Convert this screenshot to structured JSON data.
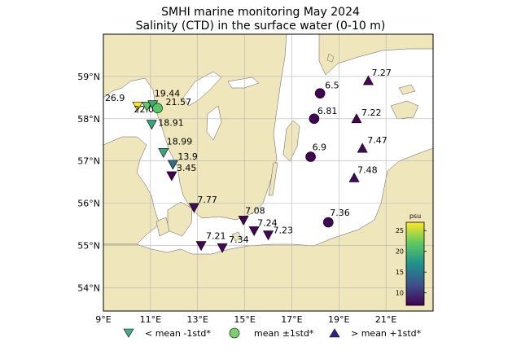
{
  "title": "SMHI marine monitoring May 2024",
  "subtitle": "Salinity (CTD) in the surface water (0-10 m)",
  "axes": {
    "lon_ticks": [
      "9°E",
      "11°E",
      "13°E",
      "15°E",
      "17°E",
      "19°E",
      "21°E"
    ],
    "lat_ticks": [
      "59°N",
      "58°N",
      "57°N",
      "56°N",
      "55°N",
      "54°N"
    ]
  },
  "colorbar": {
    "unit": "psu",
    "ticks": [
      "25",
      "20",
      "15",
      "10"
    ],
    "range": [
      7,
      27
    ],
    "colors": [
      "#440154",
      "#3b528b",
      "#21918c",
      "#5ec962",
      "#fde725"
    ]
  },
  "legend": {
    "below": "< mean -1std*",
    "mean": "mean ±1std*",
    "above": "> mean +1std*"
  },
  "colors": {
    "land": "#efe6bc",
    "sea": "#ffffff",
    "grid": "#b4b4b4"
  },
  "stations": [
    {
      "label": "26.9",
      "value": 26.9,
      "lon": 10.45,
      "lat": 58.3,
      "marker": "down"
    },
    {
      "label": "22.07",
      "value": 22.07,
      "lon": 10.85,
      "lat": 58.3,
      "marker": "down"
    },
    {
      "label": "19.44",
      "value": 19.44,
      "lon": 11.1,
      "lat": 58.33,
      "marker": "down"
    },
    {
      "label": "21.57",
      "value": 21.57,
      "lon": 11.3,
      "lat": 58.25,
      "marker": "circle"
    },
    {
      "label": "18.91",
      "value": 18.91,
      "lon": 11.05,
      "lat": 57.87,
      "marker": "down"
    },
    {
      "label": "18.99",
      "value": 18.99,
      "lon": 11.55,
      "lat": 57.2,
      "marker": "down"
    },
    {
      "label": "13.9",
      "value": 13.9,
      "lon": 11.95,
      "lat": 56.92,
      "marker": "down"
    },
    {
      "label": "3.45",
      "value": 3.45,
      "lon": 11.9,
      "lat": 56.65,
      "marker": "down"
    },
    {
      "label": "7.77",
      "value": 7.77,
      "lon": 12.85,
      "lat": 55.9,
      "marker": "down"
    },
    {
      "label": "7.21",
      "value": 7.21,
      "lon": 13.15,
      "lat": 55.0,
      "marker": "down"
    },
    {
      "label": "7.34",
      "value": 7.34,
      "lon": 14.05,
      "lat": 54.95,
      "marker": "down"
    },
    {
      "label": "7.08",
      "value": 7.08,
      "lon": 14.95,
      "lat": 55.6,
      "marker": "down"
    },
    {
      "label": "7.24",
      "value": 7.24,
      "lon": 15.4,
      "lat": 55.35,
      "marker": "down"
    },
    {
      "label": "7.23",
      "value": 7.23,
      "lon": 16.0,
      "lat": 55.25,
      "marker": "down"
    },
    {
      "label": "6.5",
      "value": 6.5,
      "lon": 18.2,
      "lat": 58.6,
      "marker": "circle"
    },
    {
      "label": "6.81",
      "value": 6.81,
      "lon": 17.95,
      "lat": 58.0,
      "marker": "circle"
    },
    {
      "label": "6.9",
      "value": 6.9,
      "lon": 17.8,
      "lat": 57.1,
      "marker": "circle"
    },
    {
      "label": "7.36",
      "value": 7.36,
      "lon": 18.55,
      "lat": 55.55,
      "marker": "circle"
    },
    {
      "label": "7.27",
      "value": 7.27,
      "lon": 20.25,
      "lat": 58.9,
      "marker": "up"
    },
    {
      "label": "7.22",
      "value": 7.22,
      "lon": 19.75,
      "lat": 58.0,
      "marker": "up"
    },
    {
      "label": "7.47",
      "value": 7.47,
      "lon": 20.0,
      "lat": 57.3,
      "marker": "up"
    },
    {
      "label": "7.48",
      "value": 7.48,
      "lon": 19.65,
      "lat": 56.6,
      "marker": "up"
    }
  ]
}
